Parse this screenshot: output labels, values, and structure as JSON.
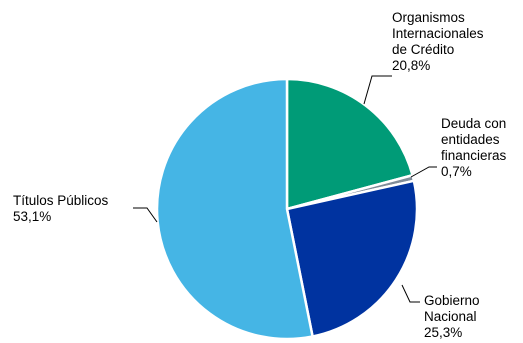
{
  "chart_data": {
    "type": "pie",
    "title": "",
    "start_angle_deg": 0,
    "direction": "clockwise",
    "slices": [
      {
        "name": "Organismos Internacionales de Crédito",
        "label_lines": [
          "Organismos",
          "Internacionales",
          "de Crédito"
        ],
        "value_label": "20,8%",
        "value": 20.8,
        "color": "#009B77"
      },
      {
        "name": "Deuda con entidades financieras",
        "label_lines": [
          "Deuda con",
          "entidades",
          "financieras"
        ],
        "value_label": "0,7%",
        "value": 0.7,
        "color": "#7F8C99"
      },
      {
        "name": "Gobierno Nacional",
        "label_lines": [
          "Gobierno",
          "Nacional"
        ],
        "value_label": "25,3%",
        "value": 25.3,
        "color": "#0033A0"
      },
      {
        "name": "Títulos Públicos",
        "label_lines": [
          "Títulos Públicos"
        ],
        "value_label": "53,1%",
        "value": 53.1,
        "color": "#45B5E5"
      }
    ]
  }
}
